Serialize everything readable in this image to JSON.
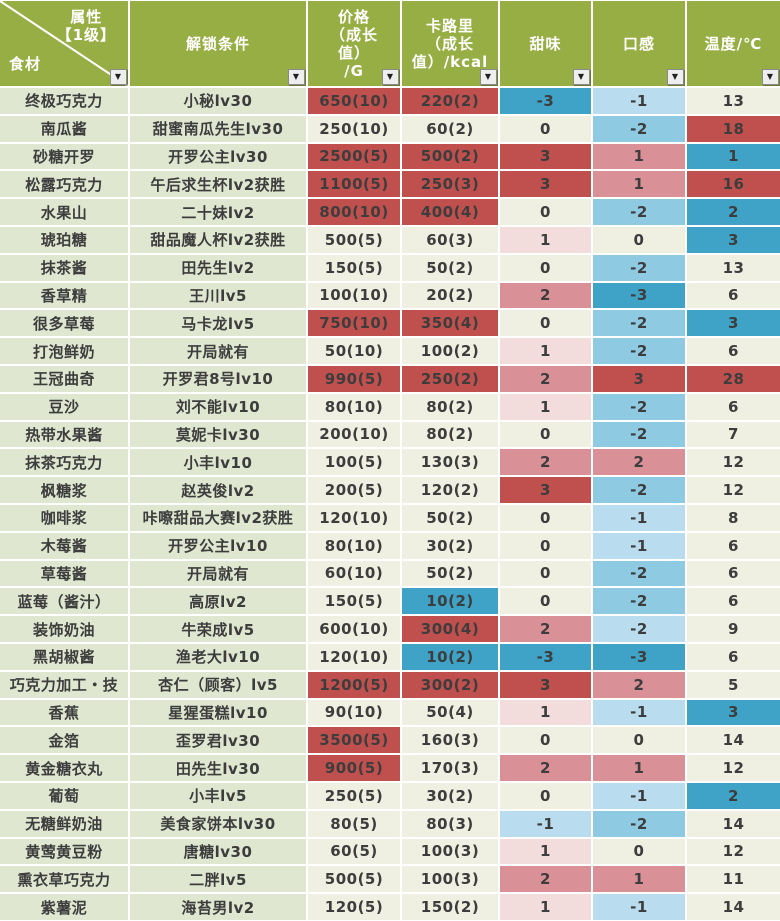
{
  "header": {
    "corner_attribute_label": "属性\n【1级】",
    "corner_ingredient_label": "食材",
    "columns": [
      "解锁条件",
      "价格\n（成长\n值）\n/G",
      "卡路里\n（成长\n值）/kcal",
      "甜味",
      "口感",
      "温度/℃"
    ],
    "filter_icon": "▼"
  },
  "palette": {
    "header_green": "#97ae44",
    "row_green": "#dfe7d0",
    "cell_plain": "#f0f0e2",
    "r": "#c0504d",
    "p": "#da9097",
    "lp": "#f2dcdc",
    "lb": "#b9ddee",
    "mb": "#8ecbe3",
    "db": "#3fa3c8"
  },
  "rows": [
    {
      "name": "终极巧克力",
      "unlock": "小秘lv30",
      "price": "650(10)",
      "pc": "r",
      "cal": "220(2)",
      "cc": "r",
      "sweet": "-3",
      "sc": "db",
      "feel": "-1",
      "fc": "lb",
      "temp": "13",
      "tc": ""
    },
    {
      "name": "南瓜酱",
      "unlock": "甜蜜南瓜先生lv30",
      "price": "250(10)",
      "pc": "",
      "cal": "60(2)",
      "cc": "",
      "sweet": "0",
      "sc": "",
      "feel": "-2",
      "fc": "mb",
      "temp": "18",
      "tc": "r"
    },
    {
      "name": "砂糖开罗",
      "unlock": "开罗公主lv30",
      "price": "2500(5)",
      "pc": "r",
      "cal": "500(2)",
      "cc": "r",
      "sweet": "3",
      "sc": "r",
      "feel": "1",
      "fc": "p",
      "temp": "1",
      "tc": "db"
    },
    {
      "name": "松露巧克力",
      "unlock": "午后求生杯lv2获胜",
      "price": "1100(5)",
      "pc": "r",
      "cal": "250(3)",
      "cc": "r",
      "sweet": "3",
      "sc": "r",
      "feel": "1",
      "fc": "p",
      "temp": "16",
      "tc": "r"
    },
    {
      "name": "水果山",
      "unlock": "二十妹lv2",
      "price": "800(10)",
      "pc": "r",
      "cal": "400(4)",
      "cc": "r",
      "sweet": "0",
      "sc": "",
      "feel": "-2",
      "fc": "mb",
      "temp": "2",
      "tc": "db"
    },
    {
      "name": "琥珀糖",
      "unlock": "甜品魔人杯lv2获胜",
      "price": "500(5)",
      "pc": "",
      "cal": "60(3)",
      "cc": "",
      "sweet": "1",
      "sc": "lp",
      "feel": "0",
      "fc": "",
      "temp": "3",
      "tc": "db"
    },
    {
      "name": "抹茶酱",
      "unlock": "田先生lv2",
      "price": "150(5)",
      "pc": "",
      "cal": "50(2)",
      "cc": "",
      "sweet": "0",
      "sc": "",
      "feel": "-2",
      "fc": "mb",
      "temp": "13",
      "tc": ""
    },
    {
      "name": "香草精",
      "unlock": "王川lv5",
      "price": "100(10)",
      "pc": "",
      "cal": "20(2)",
      "cc": "",
      "sweet": "2",
      "sc": "p",
      "feel": "-3",
      "fc": "db",
      "temp": "6",
      "tc": ""
    },
    {
      "name": "很多草莓",
      "unlock": "马卡龙lv5",
      "price": "750(10)",
      "pc": "r",
      "cal": "350(4)",
      "cc": "r",
      "sweet": "0",
      "sc": "",
      "feel": "-2",
      "fc": "mb",
      "temp": "3",
      "tc": "db"
    },
    {
      "name": "打泡鲜奶",
      "unlock": "开局就有",
      "price": "50(10)",
      "pc": "",
      "cal": "100(2)",
      "cc": "",
      "sweet": "1",
      "sc": "lp",
      "feel": "-2",
      "fc": "mb",
      "temp": "6",
      "tc": ""
    },
    {
      "name": "王冠曲奇",
      "unlock": "开罗君8号lv10",
      "price": "990(5)",
      "pc": "r",
      "cal": "250(2)",
      "cc": "r",
      "sweet": "2",
      "sc": "p",
      "feel": "3",
      "fc": "r",
      "temp": "28",
      "tc": "r"
    },
    {
      "name": "豆沙",
      "unlock": "刘不能lv10",
      "price": "80(10)",
      "pc": "",
      "cal": "80(2)",
      "cc": "",
      "sweet": "1",
      "sc": "lp",
      "feel": "-2",
      "fc": "mb",
      "temp": "6",
      "tc": ""
    },
    {
      "name": "热带水果酱",
      "unlock": "莫妮卡lv30",
      "price": "200(10)",
      "pc": "",
      "cal": "80(2)",
      "cc": "",
      "sweet": "0",
      "sc": "",
      "feel": "-2",
      "fc": "mb",
      "temp": "7",
      "tc": ""
    },
    {
      "name": "抹茶巧克力",
      "unlock": "小丰lv10",
      "price": "100(5)",
      "pc": "",
      "cal": "130(3)",
      "cc": "",
      "sweet": "2",
      "sc": "p",
      "feel": "2",
      "fc": "p",
      "temp": "12",
      "tc": ""
    },
    {
      "name": "枫糖浆",
      "unlock": "赵英俊lv2",
      "price": "200(5)",
      "pc": "",
      "cal": "120(2)",
      "cc": "",
      "sweet": "3",
      "sc": "r",
      "feel": "-2",
      "fc": "mb",
      "temp": "12",
      "tc": ""
    },
    {
      "name": "咖啡浆",
      "unlock": "咔嚓甜品大赛lv2获胜",
      "price": "120(10)",
      "pc": "",
      "cal": "50(2)",
      "cc": "",
      "sweet": "0",
      "sc": "",
      "feel": "-1",
      "fc": "lb",
      "temp": "8",
      "tc": ""
    },
    {
      "name": "木莓酱",
      "unlock": "开罗公主lv10",
      "price": "80(10)",
      "pc": "",
      "cal": "30(2)",
      "cc": "",
      "sweet": "0",
      "sc": "",
      "feel": "-1",
      "fc": "lb",
      "temp": "6",
      "tc": ""
    },
    {
      "name": "草莓酱",
      "unlock": "开局就有",
      "price": "60(10)",
      "pc": "",
      "cal": "50(2)",
      "cc": "",
      "sweet": "0",
      "sc": "",
      "feel": "-2",
      "fc": "mb",
      "temp": "6",
      "tc": ""
    },
    {
      "name": "蓝莓（酱汁）",
      "unlock": "高原lv2",
      "price": "150(5)",
      "pc": "",
      "cal": "10(2)",
      "cc": "db",
      "sweet": "0",
      "sc": "",
      "feel": "-2",
      "fc": "mb",
      "temp": "6",
      "tc": ""
    },
    {
      "name": "装饰奶油",
      "unlock": "牛荣成lv5",
      "price": "600(10)",
      "pc": "",
      "cal": "300(4)",
      "cc": "r",
      "sweet": "2",
      "sc": "p",
      "feel": "-2",
      "fc": "lb",
      "temp": "9",
      "tc": ""
    },
    {
      "name": "黑胡椒酱",
      "unlock": "渔老大lv10",
      "price": "120(10)",
      "pc": "",
      "cal": "10(2)",
      "cc": "db",
      "sweet": "-3",
      "sc": "db",
      "feel": "-3",
      "fc": "db",
      "temp": "6",
      "tc": ""
    },
    {
      "name": "巧克力加工・技",
      "unlock": "杏仁（顾客）lv5",
      "price": "1200(5)",
      "pc": "r",
      "cal": "300(2)",
      "cc": "r",
      "sweet": "3",
      "sc": "r",
      "feel": "2",
      "fc": "p",
      "temp": "5",
      "tc": ""
    },
    {
      "name": "香蕉",
      "unlock": "星猩蛋糕lv10",
      "price": "90(10)",
      "pc": "",
      "cal": "50(4)",
      "cc": "",
      "sweet": "1",
      "sc": "lp",
      "feel": "-1",
      "fc": "lb",
      "temp": "3",
      "tc": "db"
    },
    {
      "name": "金箔",
      "unlock": "歪罗君lv30",
      "price": "3500(5)",
      "pc": "r",
      "cal": "160(3)",
      "cc": "",
      "sweet": "0",
      "sc": "",
      "feel": "0",
      "fc": "",
      "temp": "14",
      "tc": ""
    },
    {
      "name": "黄金糖衣丸",
      "unlock": "田先生lv30",
      "price": "900(5)",
      "pc": "r",
      "cal": "170(3)",
      "cc": "",
      "sweet": "2",
      "sc": "p",
      "feel": "1",
      "fc": "p",
      "temp": "12",
      "tc": ""
    },
    {
      "name": "葡萄",
      "unlock": "小丰lv5",
      "price": "250(5)",
      "pc": "",
      "cal": "30(2)",
      "cc": "",
      "sweet": "0",
      "sc": "",
      "feel": "-1",
      "fc": "lb",
      "temp": "2",
      "tc": "db"
    },
    {
      "name": "无糖鲜奶油",
      "unlock": "美食家饼本lv30",
      "price": "80(5)",
      "pc": "",
      "cal": "80(3)",
      "cc": "",
      "sweet": "-1",
      "sc": "lb",
      "feel": "-2",
      "fc": "mb",
      "temp": "14",
      "tc": ""
    },
    {
      "name": "黄莺黄豆粉",
      "unlock": "唐糖lv30",
      "price": "60(5)",
      "pc": "",
      "cal": "100(3)",
      "cc": "",
      "sweet": "1",
      "sc": "lp",
      "feel": "0",
      "fc": "",
      "temp": "12",
      "tc": ""
    },
    {
      "name": "熏衣草巧克力",
      "unlock": "二胖lv5",
      "price": "500(5)",
      "pc": "",
      "cal": "100(3)",
      "cc": "",
      "sweet": "2",
      "sc": "p",
      "feel": "1",
      "fc": "p",
      "temp": "11",
      "tc": ""
    },
    {
      "name": "紫薯泥",
      "unlock": "海苔男lv2",
      "price": "120(5)",
      "pc": "",
      "cal": "150(2)",
      "cc": "",
      "sweet": "1",
      "sc": "lp",
      "feel": "-1",
      "fc": "lb",
      "temp": "14",
      "tc": ""
    }
  ]
}
